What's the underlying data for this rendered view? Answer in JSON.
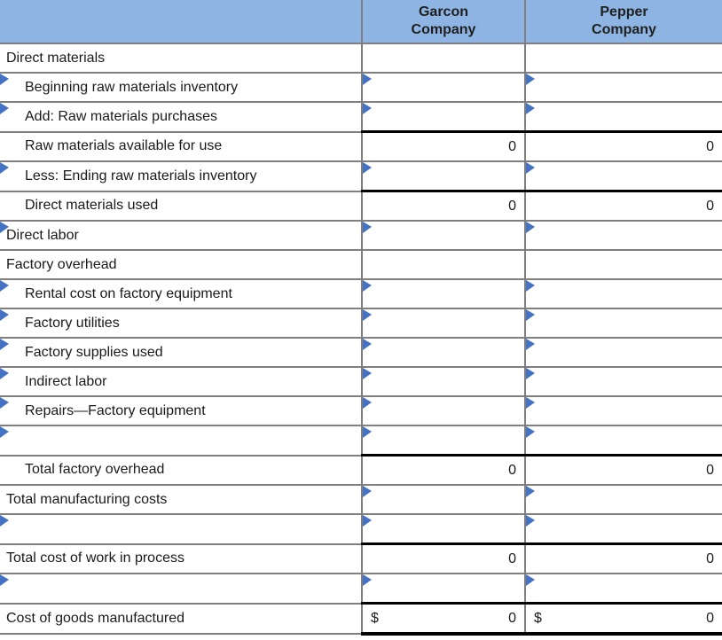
{
  "colors": {
    "header_bg": "#8DB4E2",
    "marker_blue": "#4472C4",
    "grid_gray": "#7F7F7F",
    "total_rule_black": "#000000"
  },
  "table": {
    "columns": [
      "",
      "Garcon\nCompany",
      "Pepper\nCompany"
    ],
    "rows": [
      {
        "label": "Direct materials",
        "indent": false,
        "row_marker": false,
        "total_top": false,
        "total_bottom": false,
        "cells": [
          {
            "marker": false,
            "dollar": "",
            "amount": ""
          },
          {
            "marker": false,
            "dollar": "",
            "amount": ""
          }
        ]
      },
      {
        "label": "Beginning raw materials inventory",
        "indent": true,
        "row_marker": true,
        "total_top": false,
        "total_bottom": false,
        "cells": [
          {
            "marker": true,
            "dollar": "",
            "amount": ""
          },
          {
            "marker": true,
            "dollar": "",
            "amount": ""
          }
        ]
      },
      {
        "label": "Add: Raw materials purchases",
        "indent": true,
        "row_marker": true,
        "total_top": false,
        "total_bottom": false,
        "cells": [
          {
            "marker": true,
            "dollar": "",
            "amount": ""
          },
          {
            "marker": true,
            "dollar": "",
            "amount": ""
          }
        ]
      },
      {
        "label": "Raw materials available for use",
        "indent": true,
        "row_marker": false,
        "total_top": true,
        "total_bottom": false,
        "cells": [
          {
            "marker": false,
            "dollar": "",
            "amount": "0"
          },
          {
            "marker": false,
            "dollar": "",
            "amount": "0"
          }
        ]
      },
      {
        "label": "Less: Ending raw materials inventory",
        "indent": true,
        "row_marker": true,
        "total_top": false,
        "total_bottom": false,
        "cells": [
          {
            "marker": true,
            "dollar": "",
            "amount": ""
          },
          {
            "marker": true,
            "dollar": "",
            "amount": ""
          }
        ]
      },
      {
        "label": "Direct materials used",
        "indent": true,
        "row_marker": false,
        "total_top": true,
        "total_bottom": false,
        "cells": [
          {
            "marker": false,
            "dollar": "",
            "amount": "0"
          },
          {
            "marker": false,
            "dollar": "",
            "amount": "0"
          }
        ]
      },
      {
        "label": "Direct labor",
        "indent": false,
        "row_marker": true,
        "total_top": false,
        "total_bottom": false,
        "cells": [
          {
            "marker": true,
            "dollar": "",
            "amount": ""
          },
          {
            "marker": true,
            "dollar": "",
            "amount": ""
          }
        ]
      },
      {
        "label": "Factory overhead",
        "indent": false,
        "row_marker": false,
        "total_top": false,
        "total_bottom": false,
        "cells": [
          {
            "marker": false,
            "dollar": "",
            "amount": ""
          },
          {
            "marker": false,
            "dollar": "",
            "amount": ""
          }
        ]
      },
      {
        "label": "Rental cost on factory equipment",
        "indent": true,
        "row_marker": true,
        "total_top": false,
        "total_bottom": false,
        "cells": [
          {
            "marker": true,
            "dollar": "",
            "amount": ""
          },
          {
            "marker": true,
            "dollar": "",
            "amount": ""
          }
        ]
      },
      {
        "label": "Factory utilities",
        "indent": true,
        "row_marker": true,
        "total_top": false,
        "total_bottom": false,
        "cells": [
          {
            "marker": true,
            "dollar": "",
            "amount": ""
          },
          {
            "marker": true,
            "dollar": "",
            "amount": ""
          }
        ]
      },
      {
        "label": "Factory supplies used",
        "indent": true,
        "row_marker": true,
        "total_top": false,
        "total_bottom": false,
        "cells": [
          {
            "marker": true,
            "dollar": "",
            "amount": ""
          },
          {
            "marker": true,
            "dollar": "",
            "amount": ""
          }
        ]
      },
      {
        "label": "Indirect labor",
        "indent": true,
        "row_marker": true,
        "total_top": false,
        "total_bottom": false,
        "cells": [
          {
            "marker": true,
            "dollar": "",
            "amount": ""
          },
          {
            "marker": true,
            "dollar": "",
            "amount": ""
          }
        ]
      },
      {
        "label": "Repairs—Factory equipment",
        "indent": true,
        "row_marker": true,
        "total_top": false,
        "total_bottom": false,
        "cells": [
          {
            "marker": true,
            "dollar": "",
            "amount": ""
          },
          {
            "marker": true,
            "dollar": "",
            "amount": ""
          }
        ]
      },
      {
        "label": "",
        "indent": true,
        "row_marker": true,
        "total_top": false,
        "total_bottom": false,
        "cells": [
          {
            "marker": true,
            "dollar": "",
            "amount": ""
          },
          {
            "marker": true,
            "dollar": "",
            "amount": ""
          }
        ]
      },
      {
        "label": "Total factory overhead",
        "indent": true,
        "row_marker": false,
        "total_top": true,
        "total_bottom": false,
        "cells": [
          {
            "marker": false,
            "dollar": "",
            "amount": "0"
          },
          {
            "marker": false,
            "dollar": "",
            "amount": "0"
          }
        ]
      },
      {
        "label": "Total manufacturing costs",
        "indent": false,
        "row_marker": false,
        "total_top": false,
        "total_bottom": false,
        "cells": [
          {
            "marker": true,
            "dollar": "",
            "amount": ""
          },
          {
            "marker": true,
            "dollar": "",
            "amount": ""
          }
        ]
      },
      {
        "label": "",
        "indent": false,
        "row_marker": true,
        "total_top": false,
        "total_bottom": false,
        "cells": [
          {
            "marker": true,
            "dollar": "",
            "amount": ""
          },
          {
            "marker": true,
            "dollar": "",
            "amount": ""
          }
        ]
      },
      {
        "label": "Total cost of work in process",
        "indent": false,
        "row_marker": false,
        "total_top": true,
        "total_bottom": false,
        "cells": [
          {
            "marker": false,
            "dollar": "",
            "amount": "0"
          },
          {
            "marker": false,
            "dollar": "",
            "amount": "0"
          }
        ]
      },
      {
        "label": "",
        "indent": false,
        "row_marker": true,
        "total_top": false,
        "total_bottom": false,
        "cells": [
          {
            "marker": true,
            "dollar": "",
            "amount": ""
          },
          {
            "marker": true,
            "dollar": "",
            "amount": ""
          }
        ]
      },
      {
        "label": "Cost of goods manufactured",
        "indent": false,
        "row_marker": false,
        "total_top": true,
        "total_bottom": true,
        "cells": [
          {
            "marker": false,
            "dollar": "$",
            "amount": "0"
          },
          {
            "marker": false,
            "dollar": "$",
            "amount": "0"
          }
        ]
      }
    ]
  }
}
